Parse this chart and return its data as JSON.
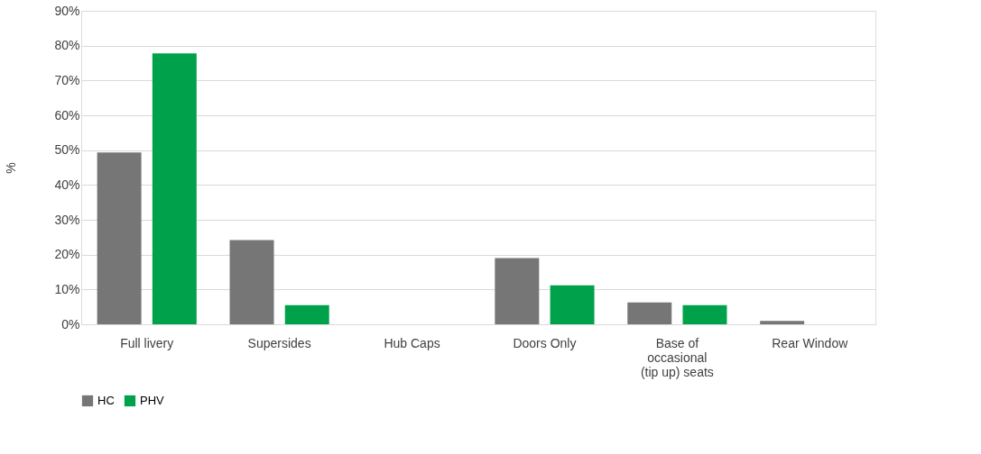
{
  "chart_data": {
    "type": "bar",
    "ylabel": "%",
    "categories": [
      "Full livery",
      "Supersides",
      "Hub Caps",
      "Doors Only",
      "Base of occasional (tip up) seats",
      "Rear Window"
    ],
    "series": [
      {
        "name": "HC",
        "color": "#767676",
        "values": [
          49.3,
          24.2,
          0,
          19,
          6.3,
          1
        ]
      },
      {
        "name": "PHV",
        "color": "#00a14b",
        "values": [
          77.8,
          5.5,
          0,
          11.2,
          5.5,
          0
        ]
      }
    ],
    "ylim": [
      0,
      90
    ],
    "yticks": [
      {
        "value": 0,
        "label": "0%"
      },
      {
        "value": 10,
        "label": "10%"
      },
      {
        "value": 20,
        "label": "20%"
      },
      {
        "value": 30,
        "label": "30%"
      },
      {
        "value": 40,
        "label": "40%"
      },
      {
        "value": 50,
        "label": "50%"
      },
      {
        "value": 60,
        "label": "60%"
      },
      {
        "value": 70,
        "label": "70%"
      },
      {
        "value": 80,
        "label": "80%"
      },
      {
        "value": 90,
        "label": "90%"
      }
    ],
    "grid": "y",
    "legend": "bottom"
  }
}
